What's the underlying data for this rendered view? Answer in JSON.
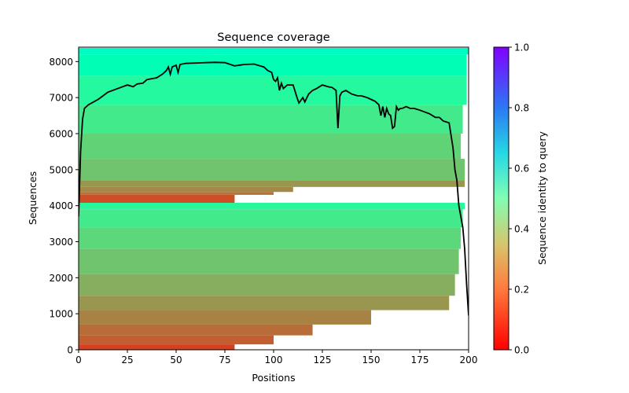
{
  "chart_data": {
    "type": "heatmap",
    "title": "Sequence coverage",
    "xlabel": "Positions",
    "ylabel": "Sequences",
    "xlim": [
      0,
      200
    ],
    "ylim": [
      0,
      8400
    ],
    "xticks": [
      0,
      25,
      50,
      75,
      100,
      125,
      150,
      175,
      200
    ],
    "yticks": [
      0,
      1000,
      2000,
      3000,
      4000,
      5000,
      6000,
      7000,
      8000
    ],
    "colorbar": {
      "label": "Sequence identity to query",
      "range": [
        0,
        1
      ],
      "ticks": [
        0.0,
        0.2,
        0.4,
        0.6,
        0.8,
        1.0
      ],
      "colormap": "rainbow_r"
    },
    "coverage_bands": [
      {
        "from": 8200,
        "to": 8380,
        "identity": 0.55,
        "start": 0,
        "end": 200
      },
      {
        "from": 7600,
        "to": 8200,
        "identity": 0.5,
        "start": 0,
        "end": 199
      },
      {
        "from": 6800,
        "to": 7600,
        "identity": 0.43,
        "start": 0,
        "end": 199
      },
      {
        "from": 6000,
        "to": 6800,
        "identity": 0.37,
        "start": 0,
        "end": 197
      },
      {
        "from": 5300,
        "to": 6000,
        "identity": 0.31,
        "start": 0,
        "end": 196
      },
      {
        "from": 4700,
        "to": 5300,
        "identity": 0.28,
        "start": 0,
        "end": 198
      },
      {
        "from": 4520,
        "to": 4700,
        "identity": 0.2,
        "start": 0,
        "end": 198
      },
      {
        "from": 4380,
        "to": 4520,
        "identity": 0.18,
        "start": 0,
        "end": 110
      },
      {
        "from": 4300,
        "to": 4380,
        "identity": 0.15,
        "start": 0,
        "end": 100
      },
      {
        "from": 4080,
        "to": 4300,
        "identity": 0.1,
        "start": 0,
        "end": 80
      },
      {
        "from": 3900,
        "to": 4080,
        "identity": 0.42,
        "start": 0,
        "end": 198
      },
      {
        "from": 3400,
        "to": 3900,
        "identity": 0.37,
        "start": 0,
        "end": 197
      },
      {
        "from": 2800,
        "to": 3400,
        "identity": 0.32,
        "start": 0,
        "end": 196
      },
      {
        "from": 2100,
        "to": 2800,
        "identity": 0.28,
        "start": 0,
        "end": 195
      },
      {
        "from": 1500,
        "to": 2100,
        "identity": 0.24,
        "start": 0,
        "end": 193
      },
      {
        "from": 1100,
        "to": 1500,
        "identity": 0.2,
        "start": 0,
        "end": 190
      },
      {
        "from": 700,
        "to": 1100,
        "identity": 0.17,
        "start": 0,
        "end": 150
      },
      {
        "from": 400,
        "to": 700,
        "identity": 0.14,
        "start": 0,
        "end": 120
      },
      {
        "from": 150,
        "to": 400,
        "identity": 0.12,
        "start": 0,
        "end": 100
      },
      {
        "from": 0,
        "to": 150,
        "identity": 0.08,
        "start": 0,
        "end": 80
      }
    ],
    "coverage_line": {
      "x": [
        0,
        1,
        2,
        3,
        5,
        10,
        15,
        20,
        25,
        28,
        30,
        33,
        35,
        40,
        43,
        45,
        46,
        47,
        48,
        50,
        51,
        52,
        55,
        60,
        65,
        70,
        75,
        80,
        85,
        90,
        93,
        95,
        97,
        99,
        100,
        101,
        102,
        103,
        104,
        105,
        107,
        110,
        112,
        113,
        115,
        116,
        118,
        120,
        122,
        125,
        128,
        130,
        132,
        133,
        134,
        135,
        137,
        140,
        143,
        145,
        148,
        150,
        152,
        154,
        155,
        156,
        157,
        158,
        159,
        160,
        161,
        162,
        163,
        164,
        165,
        166,
        168,
        170,
        172,
        175,
        180,
        183,
        185,
        187,
        190,
        192,
        193,
        194,
        195,
        196,
        197,
        198,
        199,
        200
      ],
      "y": [
        3700,
        5500,
        6400,
        6700,
        6800,
        6950,
        7150,
        7250,
        7350,
        7300,
        7380,
        7400,
        7500,
        7550,
        7650,
        7750,
        7850,
        7650,
        7850,
        7900,
        7700,
        7920,
        7950,
        7960,
        7970,
        7980,
        7970,
        7880,
        7920,
        7930,
        7880,
        7850,
        7750,
        7700,
        7500,
        7450,
        7550,
        7200,
        7400,
        7250,
        7350,
        7350,
        7000,
        6850,
        7000,
        6880,
        7100,
        7200,
        7250,
        7350,
        7300,
        7280,
        7200,
        6150,
        7050,
        7150,
        7200,
        7100,
        7050,
        7050,
        7000,
        6950,
        6900,
        6800,
        6500,
        6750,
        6450,
        6700,
        6550,
        6500,
        6150,
        6200,
        6750,
        6650,
        6700,
        6700,
        6750,
        6700,
        6700,
        6650,
        6550,
        6450,
        6450,
        6350,
        6300,
        5600,
        5000,
        4700,
        4000,
        3700,
        3400,
        2800,
        1800,
        950
      ]
    }
  }
}
